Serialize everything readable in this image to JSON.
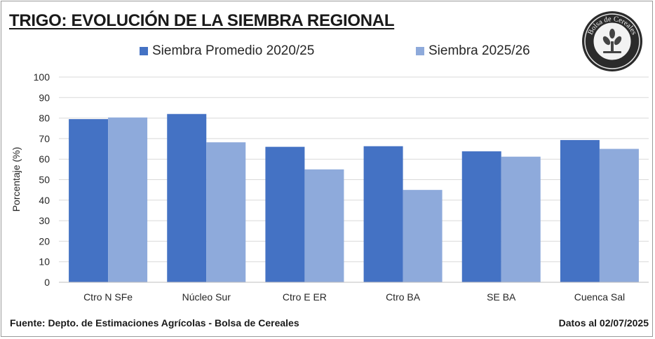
{
  "header": {
    "title": "TRIGO: EVOLUCIÓN DE LA SIEMBRA REGIONAL"
  },
  "logo": {
    "text": "Bolsa de Cereales",
    "icon": "bolsa-de-cereales-seal-icon"
  },
  "footer": {
    "source": "Fuente: Depto. de Estimaciones Agrícolas - Bolsa de Cereales",
    "date": "Datos al 02/07/2025"
  },
  "colors": {
    "series1": "#4472c4",
    "series2": "#8eaadb",
    "grid": "#d9d9d9",
    "text": "#262626"
  },
  "chart_data": {
    "type": "bar",
    "ylabel": "Porcentaje (%)",
    "xlabel": "",
    "ylim": [
      0,
      100
    ],
    "yticks": [
      0,
      10,
      20,
      30,
      40,
      50,
      60,
      70,
      80,
      90,
      100
    ],
    "grid": true,
    "legend_position": "top",
    "categories": [
      "Ctro N SFe",
      "Núcleo Sur",
      "Ctro E ER",
      "Ctro BA",
      "SE BA",
      "Cuenca Sal"
    ],
    "series": [
      {
        "name": "Siembra Promedio 2020/25",
        "values": [
          79.5,
          82,
          66,
          66.3,
          63.8,
          69.3
        ]
      },
      {
        "name": "Siembra 2025/26",
        "values": [
          80.3,
          68.2,
          55,
          45,
          61.2,
          65
        ]
      }
    ]
  }
}
